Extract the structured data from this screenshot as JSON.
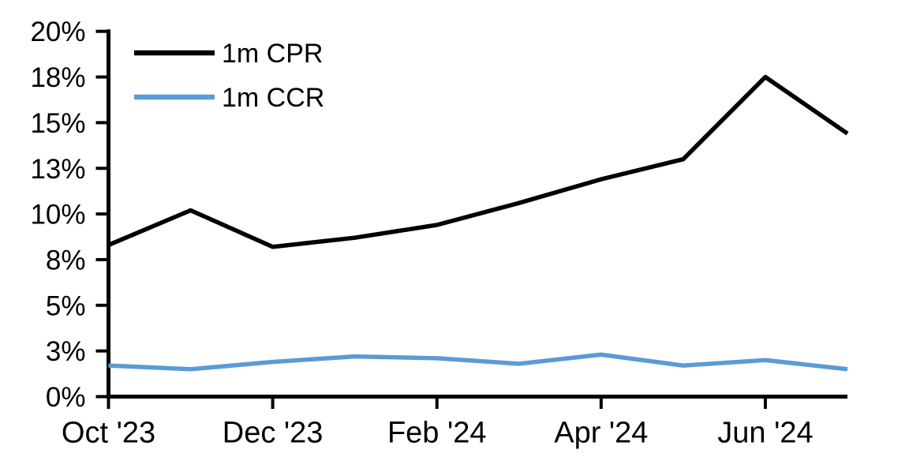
{
  "chart_data": {
    "type": "line",
    "x": [
      "Oct '23",
      "Nov '23",
      "Dec '23",
      "Jan '24",
      "Feb '24",
      "Mar '24",
      "Apr '24",
      "May '24",
      "Jun '24",
      "Jul '24"
    ],
    "series": [
      {
        "name": "1m CPR",
        "color": "#000000",
        "values": [
          8.3,
          10.2,
          8.2,
          8.7,
          9.4,
          10.6,
          11.9,
          13.0,
          17.5,
          14.4
        ]
      },
      {
        "name": "1m CCR",
        "color": "#5B9BD5",
        "values": [
          1.7,
          1.5,
          1.9,
          2.2,
          2.1,
          1.8,
          2.3,
          1.7,
          2.0,
          1.5
        ]
      }
    ],
    "ylim": [
      0,
      20
    ],
    "y_tick_step": 2.5,
    "y_ticks": [
      {
        "value": 0,
        "label": "0%"
      },
      {
        "value": 2.5,
        "label": "3%"
      },
      {
        "value": 5,
        "label": "5%"
      },
      {
        "value": 7.5,
        "label": "8%"
      },
      {
        "value": 10,
        "label": "10%"
      },
      {
        "value": 12.5,
        "label": "13%"
      },
      {
        "value": 15,
        "label": "15%"
      },
      {
        "value": 17.5,
        "label": "18%"
      },
      {
        "value": 20,
        "label": "20%"
      }
    ],
    "x_tick_labels": [
      "Oct '23",
      "Dec '23",
      "Feb '24",
      "Apr '24",
      "Jun '24"
    ],
    "grid": false,
    "legend_position": "upper-left-inside",
    "axis_color": "#000000",
    "background_color": "#FFFFFF"
  }
}
